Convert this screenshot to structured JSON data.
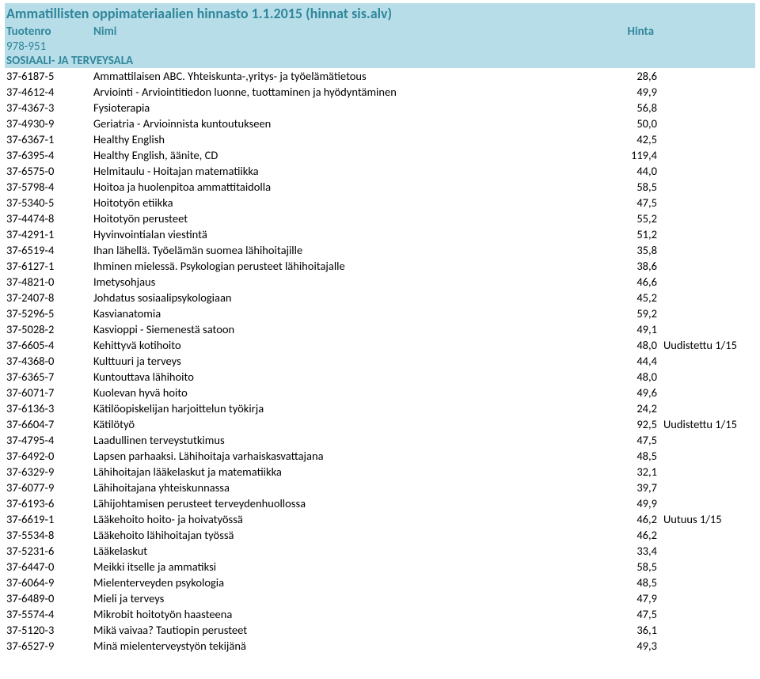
{
  "title": "Ammatillisten oppimateriaalien hinnasto 1.1.2015 (hinnat sis.alv)",
  "headers": {
    "code": "Tuotenro",
    "name": "Nimi",
    "price": "Hinta"
  },
  "sub1": "978-951",
  "section": "SOSIAALI- JA TERVEYSALA",
  "colors": {
    "teal_text": "#31869b",
    "teal_bg": "#b7dee8"
  },
  "rows": [
    {
      "code": "37-6187-5",
      "name": "Ammattilaisen ABC. Yhteiskunta-,yritys- ja työelämätietous",
      "price": "28,6",
      "note": ""
    },
    {
      "code": "37-4612-4",
      "name": "Arviointi - Arviointitiedon luonne, tuottaminen ja hyödyntäminen",
      "price": "49,9",
      "note": ""
    },
    {
      "code": "37-4367-3",
      "name": "Fysioterapia",
      "price": "56,8",
      "note": ""
    },
    {
      "code": "37-4930-9",
      "name": "Geriatria - Arvioinnista kuntoutukseen",
      "price": "50,0",
      "note": ""
    },
    {
      "code": "37-6367-1",
      "name": "Healthy English",
      "price": "42,5",
      "note": ""
    },
    {
      "code": "37-6395-4",
      "name": "Healthy English, äänite, CD",
      "price": "119,4",
      "note": ""
    },
    {
      "code": "37-6575-0",
      "name": "Helmitaulu - Hoitajan matematiikka",
      "price": "44,0",
      "note": ""
    },
    {
      "code": "37-5798-4",
      "name": "Hoitoa ja huolenpitoa ammattitaidolla",
      "price": "58,5",
      "note": ""
    },
    {
      "code": "37-5340-5",
      "name": "Hoitotyön etiikka",
      "price": "47,5",
      "note": ""
    },
    {
      "code": "37-4474-8",
      "name": "Hoitotyön perusteet",
      "price": "55,2",
      "note": ""
    },
    {
      "code": "37-4291-1",
      "name": "Hyvinvointialan viestintä",
      "price": "51,2",
      "note": ""
    },
    {
      "code": "37-6519-4",
      "name": "Ihan lähellä. Työelämän suomea lähihoitajille",
      "price": "35,8",
      "note": ""
    },
    {
      "code": "37-6127-1",
      "name": "Ihminen mielessä. Psykologian perusteet lähihoitajalle",
      "price": "38,6",
      "note": ""
    },
    {
      "code": "37-4821-0",
      "name": "Imetysohjaus",
      "price": "46,6",
      "note": ""
    },
    {
      "code": "37-2407-8",
      "name": "Johdatus sosiaalipsykologiaan",
      "price": "45,2",
      "note": ""
    },
    {
      "code": "37-5296-5",
      "name": "Kasvianatomia",
      "price": "59,2",
      "note": ""
    },
    {
      "code": "37-5028-2",
      "name": "Kasvioppi - Siemenestä satoon",
      "price": "49,1",
      "note": ""
    },
    {
      "code": "37-6605-4",
      "name": "Kehittyvä kotihoito",
      "price": "48,0",
      "note": "Uudistettu 1/15"
    },
    {
      "code": "37-4368-0",
      "name": "Kulttuuri ja terveys",
      "price": "44,4",
      "note": ""
    },
    {
      "code": "37-6365-7",
      "name": "Kuntouttava lähihoito",
      "price": "48,0",
      "note": ""
    },
    {
      "code": "37-6071-7",
      "name": "Kuolevan hyvä hoito",
      "price": "49,6",
      "note": ""
    },
    {
      "code": "37-6136-3",
      "name": "Kätilöopiskelijan harjoittelun työkirja",
      "price": "24,2",
      "note": ""
    },
    {
      "code": "37-6604-7",
      "name": "Kätilötyö",
      "price": "92,5",
      "note": "Uudistettu 1/15"
    },
    {
      "code": "37-4795-4",
      "name": "Laadullinen terveystutkimus",
      "price": "47,5",
      "note": ""
    },
    {
      "code": "37-6492-0",
      "name": "Lapsen parhaaksi. Lähihoitaja varhaiskasvattajana",
      "price": "48,5",
      "note": ""
    },
    {
      "code": "37-6329-9",
      "name": "Lähihoitajan lääkelaskut ja matematiikka",
      "price": "32,1",
      "note": ""
    },
    {
      "code": "37-6077-9",
      "name": "Lähihoitajana yhteiskunnassa",
      "price": "39,7",
      "note": ""
    },
    {
      "code": "37-6193-6",
      "name": "Lähijohtamisen perusteet terveydenhuollossa",
      "price": "49,9",
      "note": ""
    },
    {
      "code": "37-6619-1",
      "name": "Lääkehoito hoito- ja hoivatyössä",
      "price": "46,2",
      "note": "Uutuus 1/15"
    },
    {
      "code": "37-5534-8",
      "name": "Lääkehoito lähihoitajan työssä",
      "price": "46,2",
      "note": ""
    },
    {
      "code": "37-5231-6",
      "name": "Lääkelaskut",
      "price": "33,4",
      "note": ""
    },
    {
      "code": "37-6447-0",
      "name": "Meikki itselle ja ammatiksi",
      "price": "58,5",
      "note": ""
    },
    {
      "code": "37-6064-9",
      "name": "Mielenterveyden psykologia",
      "price": "48,5",
      "note": ""
    },
    {
      "code": "37-6489-0",
      "name": "Mieli ja terveys",
      "price": "47,9",
      "note": ""
    },
    {
      "code": "37-5574-4",
      "name": "Mikrobit hoitotyön haasteena",
      "price": "47,5",
      "note": ""
    },
    {
      "code": "37-5120-3",
      "name": "Mikä vaivaa? Tautiopin perusteet",
      "price": "36,1",
      "note": ""
    },
    {
      "code": "37-6527-9",
      "name": "Minä mielenterveystyön tekijänä",
      "price": "49,3",
      "note": ""
    }
  ]
}
